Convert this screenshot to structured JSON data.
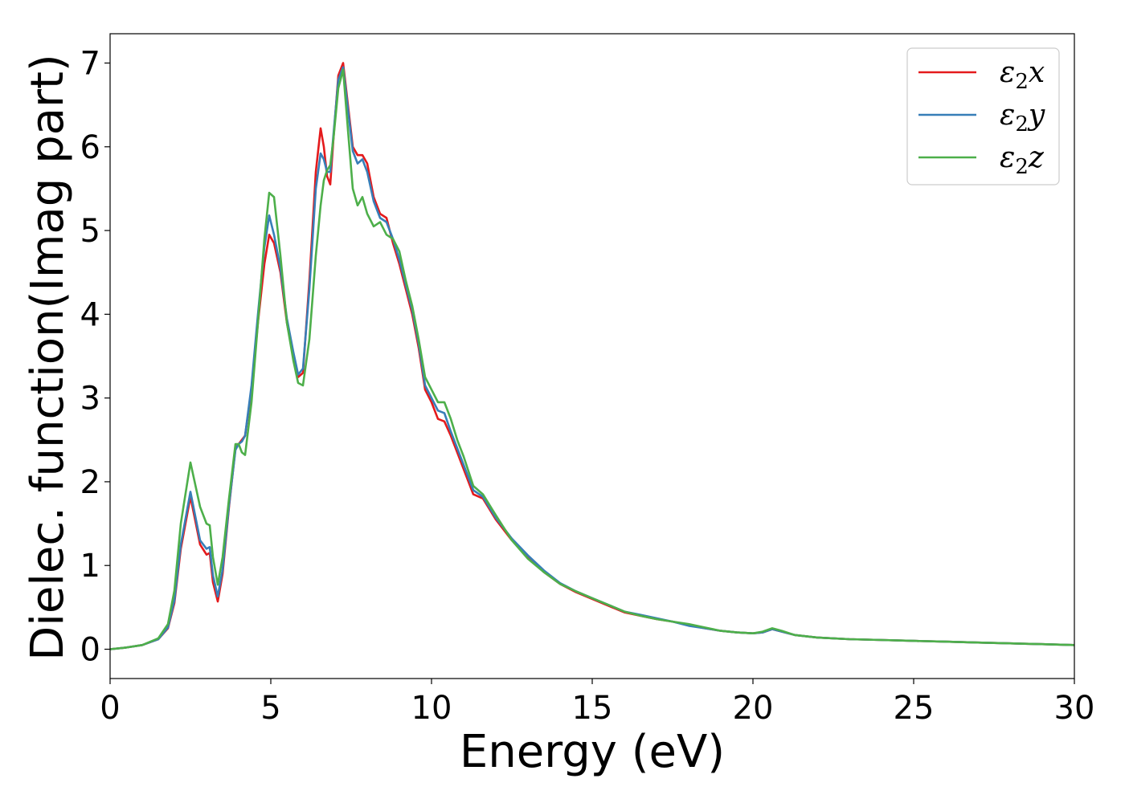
{
  "chart_data": {
    "type": "line",
    "xlabel": "Energy (eV)",
    "ylabel": "Dielec. function(Imag part)",
    "xlim": [
      0,
      30
    ],
    "ylim": [
      -0.35,
      7.35
    ],
    "xticks": [
      0,
      5,
      10,
      15,
      20,
      25,
      30
    ],
    "yticks": [
      0,
      1,
      2,
      3,
      4,
      5,
      6,
      7
    ],
    "grid": false,
    "legend_position": "top-right",
    "colors": {
      "x": "#e41a1c",
      "y": "#377eb8",
      "z": "#4daf4a"
    },
    "series": [
      {
        "name": "ε2x",
        "legend_base": "ε",
        "legend_sub": "2",
        "legend_suffix": "x",
        "color": "#e41a1c",
        "x": [
          0,
          0.5,
          1.0,
          1.5,
          1.8,
          2.0,
          2.2,
          2.5,
          2.8,
          3.0,
          3.1,
          3.2,
          3.35,
          3.5,
          3.7,
          3.9,
          4.0,
          4.1,
          4.2,
          4.4,
          4.6,
          4.8,
          4.95,
          5.1,
          5.3,
          5.5,
          5.7,
          5.85,
          6.0,
          6.2,
          6.4,
          6.55,
          6.65,
          6.75,
          6.85,
          6.95,
          7.1,
          7.25,
          7.4,
          7.55,
          7.7,
          7.85,
          8.0,
          8.2,
          8.4,
          8.6,
          8.8,
          9.0,
          9.2,
          9.4,
          9.6,
          9.8,
          10.0,
          10.2,
          10.4,
          10.6,
          10.8,
          11.0,
          11.3,
          11.6,
          12.0,
          12.5,
          13.0,
          13.5,
          14.0,
          14.5,
          15.0,
          15.5,
          16.0,
          16.5,
          17.0,
          17.5,
          18.0,
          18.5,
          19.0,
          19.5,
          20.0,
          20.3,
          20.6,
          20.9,
          21.3,
          22.0,
          23.0,
          24.0,
          25.0,
          26.0,
          27.0,
          28.0,
          29.0,
          30.0
        ],
        "y": [
          0.0,
          0.02,
          0.05,
          0.12,
          0.25,
          0.55,
          1.2,
          1.82,
          1.25,
          1.13,
          1.15,
          0.8,
          0.57,
          0.9,
          1.7,
          2.4,
          2.45,
          2.5,
          2.55,
          3.1,
          3.9,
          4.6,
          4.95,
          4.85,
          4.5,
          3.9,
          3.5,
          3.25,
          3.3,
          4.4,
          5.7,
          6.22,
          6.0,
          5.65,
          5.55,
          6.1,
          6.85,
          7.0,
          6.5,
          6.0,
          5.9,
          5.9,
          5.8,
          5.4,
          5.2,
          5.15,
          4.85,
          4.6,
          4.3,
          4.0,
          3.6,
          3.1,
          2.95,
          2.75,
          2.72,
          2.55,
          2.35,
          2.15,
          1.85,
          1.8,
          1.55,
          1.3,
          1.1,
          0.92,
          0.78,
          0.68,
          0.6,
          0.52,
          0.44,
          0.4,
          0.36,
          0.33,
          0.29,
          0.25,
          0.22,
          0.2,
          0.19,
          0.2,
          0.24,
          0.21,
          0.17,
          0.14,
          0.12,
          0.11,
          0.1,
          0.09,
          0.08,
          0.07,
          0.06,
          0.05
        ]
      },
      {
        "name": "ε2y",
        "legend_base": "ε",
        "legend_sub": "2",
        "legend_suffix": "y",
        "color": "#377eb8",
        "x": [
          0,
          0.5,
          1.0,
          1.5,
          1.8,
          2.0,
          2.2,
          2.5,
          2.8,
          3.0,
          3.1,
          3.2,
          3.35,
          3.5,
          3.7,
          3.9,
          4.0,
          4.1,
          4.2,
          4.4,
          4.6,
          4.8,
          4.95,
          5.1,
          5.3,
          5.5,
          5.7,
          5.85,
          6.0,
          6.2,
          6.4,
          6.55,
          6.65,
          6.75,
          6.85,
          6.95,
          7.1,
          7.25,
          7.4,
          7.55,
          7.7,
          7.85,
          8.0,
          8.2,
          8.4,
          8.6,
          8.8,
          9.0,
          9.2,
          9.4,
          9.6,
          9.8,
          10.0,
          10.2,
          10.4,
          10.6,
          10.8,
          11.0,
          11.3,
          11.6,
          12.0,
          12.5,
          13.0,
          13.5,
          14.0,
          14.5,
          15.0,
          15.5,
          16.0,
          16.5,
          17.0,
          17.5,
          18.0,
          18.5,
          19.0,
          19.5,
          20.0,
          20.3,
          20.6,
          20.9,
          21.3,
          22.0,
          23.0,
          24.0,
          25.0,
          26.0,
          27.0,
          28.0,
          29.0,
          30.0
        ],
        "y": [
          0.0,
          0.02,
          0.05,
          0.12,
          0.26,
          0.58,
          1.25,
          1.88,
          1.3,
          1.2,
          1.22,
          0.88,
          0.63,
          0.95,
          1.72,
          2.38,
          2.45,
          2.48,
          2.55,
          3.15,
          4.0,
          4.8,
          5.18,
          4.95,
          4.55,
          3.95,
          3.55,
          3.28,
          3.35,
          4.3,
          5.5,
          5.92,
          5.85,
          5.7,
          5.7,
          6.15,
          6.8,
          6.95,
          6.45,
          5.95,
          5.8,
          5.85,
          5.7,
          5.35,
          5.15,
          5.1,
          4.9,
          4.65,
          4.35,
          4.05,
          3.65,
          3.15,
          3.0,
          2.85,
          2.82,
          2.6,
          2.4,
          2.2,
          1.9,
          1.82,
          1.57,
          1.32,
          1.12,
          0.94,
          0.79,
          0.69,
          0.61,
          0.53,
          0.45,
          0.41,
          0.37,
          0.33,
          0.28,
          0.25,
          0.22,
          0.2,
          0.19,
          0.2,
          0.24,
          0.21,
          0.17,
          0.14,
          0.12,
          0.11,
          0.1,
          0.09,
          0.08,
          0.07,
          0.06,
          0.05
        ]
      },
      {
        "name": "ε2z",
        "legend_base": "ε",
        "legend_sub": "2",
        "legend_suffix": "z",
        "color": "#4daf4a",
        "x": [
          0,
          0.5,
          1.0,
          1.5,
          1.8,
          2.0,
          2.2,
          2.5,
          2.8,
          3.0,
          3.1,
          3.2,
          3.35,
          3.5,
          3.7,
          3.9,
          4.0,
          4.1,
          4.2,
          4.4,
          4.6,
          4.8,
          4.95,
          5.1,
          5.3,
          5.5,
          5.7,
          5.85,
          6.0,
          6.2,
          6.4,
          6.55,
          6.65,
          6.75,
          6.85,
          6.95,
          7.1,
          7.25,
          7.4,
          7.55,
          7.7,
          7.85,
          8.0,
          8.2,
          8.4,
          8.6,
          8.8,
          9.0,
          9.2,
          9.4,
          9.6,
          9.8,
          10.0,
          10.2,
          10.4,
          10.6,
          10.8,
          11.0,
          11.3,
          11.6,
          12.0,
          12.5,
          13.0,
          13.5,
          14.0,
          14.5,
          15.0,
          15.5,
          16.0,
          16.5,
          17.0,
          17.5,
          18.0,
          18.5,
          19.0,
          19.5,
          20.0,
          20.3,
          20.6,
          20.9,
          21.3,
          22.0,
          23.0,
          24.0,
          25.0,
          26.0,
          27.0,
          28.0,
          29.0,
          30.0
        ],
        "y": [
          0.0,
          0.02,
          0.05,
          0.13,
          0.3,
          0.7,
          1.5,
          2.23,
          1.7,
          1.5,
          1.48,
          1.1,
          0.77,
          1.1,
          1.8,
          2.45,
          2.45,
          2.35,
          2.32,
          2.95,
          3.9,
          4.9,
          5.45,
          5.4,
          4.7,
          3.9,
          3.45,
          3.18,
          3.15,
          3.7,
          4.7,
          5.3,
          5.6,
          5.72,
          5.78,
          6.1,
          6.7,
          6.92,
          6.2,
          5.5,
          5.3,
          5.4,
          5.2,
          5.05,
          5.1,
          4.95,
          4.9,
          4.75,
          4.4,
          4.1,
          3.7,
          3.25,
          3.1,
          2.95,
          2.95,
          2.75,
          2.5,
          2.3,
          1.95,
          1.85,
          1.6,
          1.3,
          1.08,
          0.92,
          0.78,
          0.69,
          0.61,
          0.53,
          0.45,
          0.4,
          0.36,
          0.33,
          0.3,
          0.26,
          0.22,
          0.2,
          0.19,
          0.21,
          0.25,
          0.22,
          0.17,
          0.14,
          0.12,
          0.11,
          0.1,
          0.09,
          0.08,
          0.07,
          0.06,
          0.05
        ]
      }
    ]
  }
}
